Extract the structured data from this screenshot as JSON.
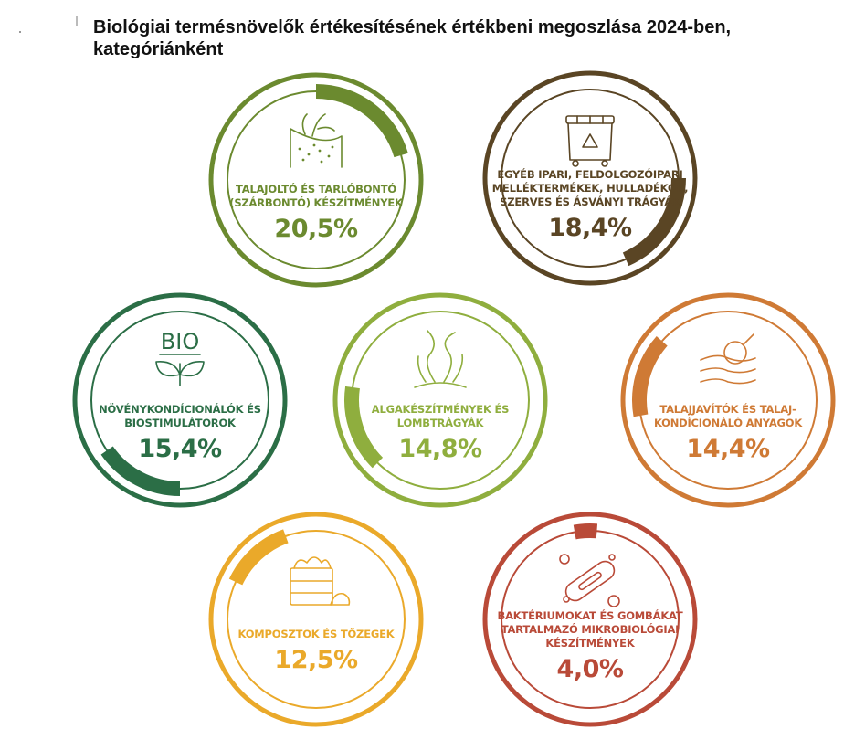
{
  "title": "Biológiai termésnövelők értékesítésének értékbeni megoszlása 2024-ben, kategóriánként",
  "chart_data": {
    "type": "pie",
    "unit": "%",
    "categories": [
      {
        "label_lines": [
          "TALAJOLTÓ ÉS TARLÓBONTÓ",
          "(SZÁRBONTÓ) KÉSZÍTMÉNYEK"
        ],
        "value": 20.5,
        "value_label": "20,5%",
        "color": "#6b8a2f",
        "icon": "soil-sprout-icon"
      },
      {
        "label_lines": [
          "EGYÉB IPARI, FELDOLGOZÓIPARI",
          "MELLÉKTERMÉKEK, HULLADÉKOK,",
          "SZERVES ÉS ÁSVÁNYI TRÁGYÁK"
        ],
        "value": 18.4,
        "value_label": "18,4%",
        "color": "#5a4524",
        "icon": "recycling-container-icon"
      },
      {
        "label_lines": [
          "NÖVÉNYKONDÍCIONÁLÓK ÉS",
          "BIOSTIMULÁTOROK"
        ],
        "value": 15.4,
        "value_label": "15,4%",
        "color": "#2b6e46",
        "icon": "bio-leaves-icon",
        "icon_text": "BIO"
      },
      {
        "label_lines": [
          "ALGAKÉSZÍTMÉNYEK ÉS",
          "LOMBTRÁGYÁK"
        ],
        "value": 14.8,
        "value_label": "14,8%",
        "color": "#8fae3e",
        "icon": "seaweed-icon"
      },
      {
        "label_lines": [
          "TALAJJAVÍTÓK ÉS TALAJ-",
          "KONDÍCIONÁLÓ ANYAGOK"
        ],
        "value": 14.4,
        "value_label": "14,4%",
        "color": "#cf7a35",
        "icon": "soil-magnifier-icon"
      },
      {
        "label_lines": [
          "KOMPOSZTOK ÉS TŐZEGEK"
        ],
        "value": 12.5,
        "value_label": "12,5%",
        "color": "#eaa92a",
        "icon": "compost-crate-icon"
      },
      {
        "label_lines": [
          "BAKTÉRIUMOKAT ÉS GOMBÁKAT",
          "TARTALMAZÓ MIKROBIOLÓGIAI",
          "KÉSZÍTMÉNYEK"
        ],
        "value": 4.0,
        "value_label": "4,0%",
        "color": "#b94a38",
        "icon": "bacterium-icon"
      }
    ]
  }
}
